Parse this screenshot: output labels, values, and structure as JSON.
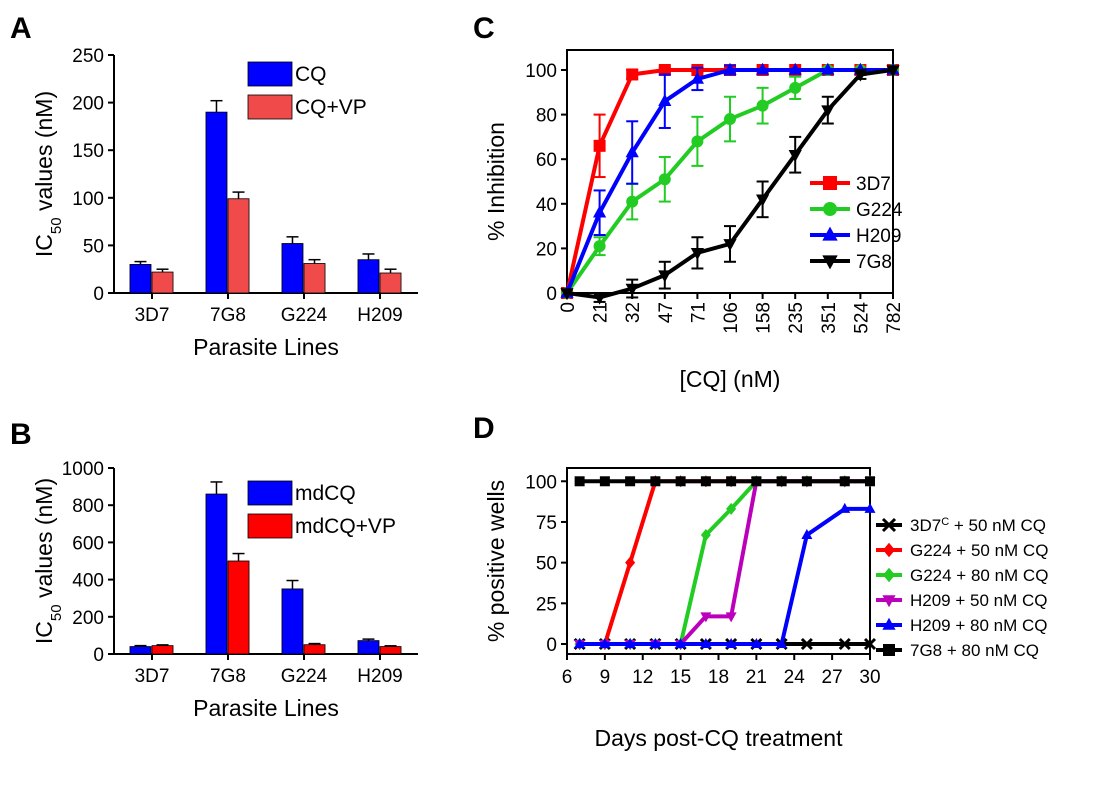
{
  "chart_data": [
    {
      "panel": "A",
      "type": "bar",
      "categories": [
        "3D7",
        "7G8",
        "G224",
        "H209"
      ],
      "series": [
        {
          "name": "CQ",
          "color": "#0000ff",
          "values": [
            30,
            190,
            52,
            35
          ],
          "errors": [
            3,
            12,
            7,
            6
          ]
        },
        {
          "name": "CQ+VP",
          "color": "#f04a4a",
          "values": [
            22,
            99,
            31,
            21
          ],
          "errors": [
            3,
            7,
            4,
            4
          ]
        }
      ],
      "ylabel_main": "IC",
      "ylabel_sub": "50",
      "ylabel_rest": " values (nM)",
      "xlabel": "Parasite Lines",
      "ylim": [
        0,
        250
      ],
      "yticks": [
        0,
        50,
        100,
        150,
        200,
        250
      ],
      "legend": "top-right"
    },
    {
      "panel": "B",
      "type": "bar",
      "categories": [
        "3D7",
        "7G8",
        "G224",
        "H209"
      ],
      "series": [
        {
          "name": "mdCQ",
          "color": "#0000ff",
          "values": [
            40,
            860,
            350,
            72
          ],
          "errors": [
            5,
            65,
            45,
            8
          ]
        },
        {
          "name": "mdCQ+VP",
          "color": "#ff0000",
          "values": [
            45,
            500,
            50,
            40
          ],
          "errors": [
            4,
            40,
            6,
            4
          ]
        }
      ],
      "ylabel_main": "IC",
      "ylabel_sub": "50",
      "ylabel_rest": " values (nM)",
      "xlabel": "Parasite Lines",
      "ylim": [
        0,
        1000
      ],
      "yticks": [
        0,
        200,
        400,
        600,
        800,
        1000
      ],
      "legend": "top-right"
    },
    {
      "panel": "C",
      "type": "line",
      "x": [
        "0",
        "21",
        "32",
        "47",
        "71",
        "106",
        "158",
        "235",
        "351",
        "524",
        "782"
      ],
      "series": [
        {
          "name": "3D7",
          "color": "#ff0000",
          "marker": "square",
          "values": [
            0,
            66,
            98,
            100,
            100,
            100,
            100,
            100,
            100,
            100,
            100
          ],
          "errors": [
            0,
            14,
            2,
            1,
            1,
            0,
            0,
            0,
            0,
            0,
            0
          ]
        },
        {
          "name": "G224",
          "color": "#22cc22",
          "marker": "circle",
          "values": [
            0,
            21,
            41,
            51,
            68,
            78,
            84,
            92,
            100,
            100,
            100
          ],
          "errors": [
            0,
            4,
            8,
            10,
            11,
            10,
            8,
            5,
            1,
            0,
            0
          ]
        },
        {
          "name": "H209",
          "color": "#0000ff",
          "marker": "triangle-up",
          "values": [
            0,
            36,
            63,
            86,
            96,
            100,
            100,
            100,
            100,
            100,
            100
          ],
          "errors": [
            0,
            10,
            14,
            12,
            5,
            2,
            0,
            0,
            0,
            0,
            0
          ]
        },
        {
          "name": "7G8",
          "color": "#000000",
          "marker": "triangle-down",
          "values": [
            0,
            -2,
            2,
            8,
            18,
            22,
            42,
            62,
            82,
            98,
            100
          ],
          "errors": [
            0,
            2,
            4,
            6,
            7,
            8,
            8,
            8,
            6,
            2,
            0
          ]
        }
      ],
      "ylabel": "% Inhibition",
      "xlabel": "[CQ] (nM)",
      "ylim": [
        0,
        100
      ],
      "yticks": [
        0,
        20,
        40,
        60,
        80,
        100
      ],
      "legend": "center-right"
    },
    {
      "panel": "D",
      "type": "line",
      "series": [
        {
          "name_main": "3D7",
          "name_sup": "C",
          "name_rest": " + 50 nM CQ",
          "color": "#000000",
          "marker": "x",
          "x": [
            7,
            9,
            11,
            13,
            15,
            17,
            19,
            21,
            23,
            25,
            28,
            30
          ],
          "values": [
            0,
            0,
            0,
            0,
            0,
            0,
            0,
            0,
            0,
            0,
            0,
            0
          ]
        },
        {
          "name": "G224 + 50 nM CQ",
          "color": "#ff0000",
          "marker": "diamond",
          "x": [
            7,
            9,
            11,
            13,
            15,
            17,
            19,
            21,
            23,
            25,
            28,
            30
          ],
          "values": [
            0,
            0,
            50,
            100,
            100,
            100,
            100,
            100,
            100,
            100,
            100,
            100
          ]
        },
        {
          "name": "G224 + 80 nM CQ",
          "color": "#22cc22",
          "marker": "diamond",
          "x": [
            7,
            9,
            11,
            13,
            15,
            17,
            19,
            21,
            23,
            25,
            28,
            30
          ],
          "values": [
            0,
            0,
            0,
            0,
            0,
            67,
            83,
            100,
            100,
            100,
            100,
            100
          ]
        },
        {
          "name": "H209 + 50 nM CQ",
          "color": "#bb00bb",
          "marker": "triangle-down",
          "x": [
            7,
            9,
            11,
            13,
            15,
            17,
            19,
            21,
            23,
            25,
            28,
            30
          ],
          "values": [
            0,
            0,
            0,
            0,
            0,
            17,
            17,
            100,
            100,
            100,
            100,
            100
          ]
        },
        {
          "name": "H209 + 80 nM CQ",
          "color": "#0000ff",
          "marker": "triangle-up",
          "x": [
            7,
            9,
            11,
            13,
            15,
            17,
            19,
            21,
            23,
            25,
            28,
            30
          ],
          "values": [
            0,
            0,
            0,
            0,
            0,
            0,
            0,
            0,
            0,
            67,
            83,
            83
          ]
        },
        {
          "name": "7G8 + 80 nM CQ",
          "color": "#000000",
          "marker": "square",
          "x": [
            7,
            9,
            11,
            13,
            15,
            17,
            19,
            21,
            23,
            25,
            28,
            30
          ],
          "values": [
            100,
            100,
            100,
            100,
            100,
            100,
            100,
            100,
            100,
            100,
            100,
            100
          ]
        }
      ],
      "ylabel": "% positive wells",
      "xlabel": "Days post-CQ treatment",
      "xlim": [
        6,
        30
      ],
      "xticks": [
        6,
        9,
        12,
        15,
        18,
        21,
        24,
        27,
        30
      ],
      "ylim": [
        0,
        110
      ],
      "yticks": [
        0,
        25,
        50,
        75,
        100
      ],
      "legend": "outside-right"
    }
  ]
}
